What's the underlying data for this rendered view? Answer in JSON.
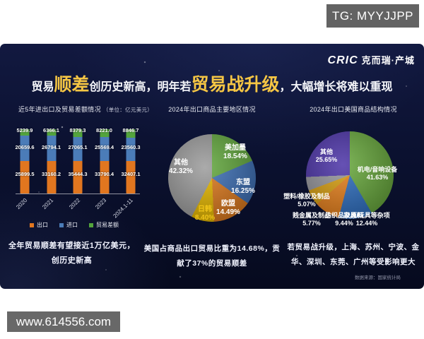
{
  "badge": {
    "text": "TG: MYYJJPP"
  },
  "watermark": {
    "text": "www.614556.com"
  },
  "logo": {
    "brand": "CRIC",
    "name": "克而瑞·产城"
  },
  "title": {
    "seg1": "贸易",
    "em1": "顺差",
    "seg2": "创历史新高，明年若",
    "em2": "贸易战升级",
    "seg3": "，大幅增长将难以重现",
    "accent_color": "#f6c644"
  },
  "left_panel": {
    "title": "近5年进出口及贸易差额情况",
    "unit": "（单位：亿元美元）",
    "legend": [
      {
        "label": "出口",
        "color": "#e1761f"
      },
      {
        "label": "进口",
        "color": "#4b7cb8"
      },
      {
        "label": "贸易差额",
        "color": "#53a43c"
      }
    ],
    "note": [
      "全年贸易顺差有望接近1万亿美元，",
      "创历史新高"
    ]
  },
  "center_panel": {
    "title": "2024年出口商品主要地区情况",
    "note": [
      "美国占商品出口贸易比重为14.68%，贡",
      "献了37%的贸易顺差"
    ]
  },
  "right_panel": {
    "title": "2024年出口美国商品结构情况",
    "note": [
      "若贸易战升级，上海、苏州、宁波、金",
      "华、深圳、东莞、广州等受影响更大"
    ],
    "source": "数据来源：国家统计局"
  },
  "chart_data": [
    {
      "type": "bar",
      "title": "近5年进出口及贸易差额情况",
      "unit": "亿元美元",
      "stacked": true,
      "categories": [
        "2020",
        "2021",
        "2022",
        "2023",
        "2024.1-11"
      ],
      "series": [
        {
          "name": "出口",
          "color": "#e1761f",
          "values": [
            25899.5,
            33160.2,
            35444.3,
            33790.4,
            32407.1
          ]
        },
        {
          "name": "进口",
          "color": "#4b7cb8",
          "values": [
            20659.6,
            26794.1,
            27065.1,
            25569.4,
            23560.3
          ]
        },
        {
          "name": "贸易差额",
          "color": "#53a43c",
          "values": [
            5239.9,
            6366.1,
            8379.3,
            8221.0,
            8846.7
          ]
        }
      ],
      "legend_position": "bottom"
    },
    {
      "type": "pie",
      "title": "2024年出口商品主要地区情况",
      "start_angle_deg": 0,
      "clockwise": true,
      "slices": [
        {
          "label": "美加墨",
          "pct": 18.54,
          "pct_label": "18.54%",
          "color": "#64a93f"
        },
        {
          "label": "东盟",
          "pct": 16.25,
          "pct_label": "16.25%",
          "color": "#3f71b7"
        },
        {
          "label": "欧盟",
          "pct": 14.49,
          "pct_label": "14.49%",
          "color": "#dd7a1e"
        },
        {
          "label": "日韩",
          "pct": 8.4,
          "pct_label": "8.40%",
          "color": "#e6b800"
        },
        {
          "label": "其他",
          "pct": 42.32,
          "pct_label": "42.32%",
          "color": "#9d9d9d"
        }
      ]
    },
    {
      "type": "pie",
      "title": "2024年出口美国商品结构情况",
      "start_angle_deg": 0,
      "clockwise": true,
      "slices": [
        {
          "label": "机电/音响设备",
          "pct": 41.63,
          "pct_label": "41.63%",
          "color": "#69a93e"
        },
        {
          "label": "家具/玩具等杂项",
          "pct": 12.44,
          "pct_label": "12.44%",
          "color": "#2f6fc0"
        },
        {
          "label": "纺织品及原料",
          "pct": 9.44,
          "pct_label": "9.44%",
          "color": "#e8821e"
        },
        {
          "label": "贱金属及制品",
          "pct": 5.77,
          "pct_label": "5.77%",
          "color": "#d9a012"
        },
        {
          "label": "塑料/橡胶及制品",
          "pct": 5.07,
          "pct_label": "5.07%",
          "color": "#97979d"
        },
        {
          "label": "其他",
          "pct": 25.65,
          "pct_label": "25.65%",
          "color": "#4d35a8"
        }
      ]
    }
  ]
}
